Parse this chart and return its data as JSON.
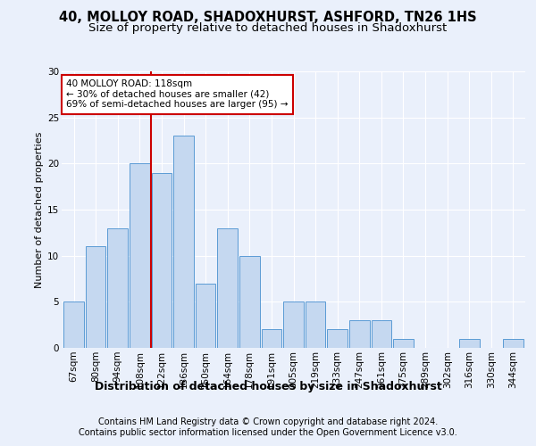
{
  "title1": "40, MOLLOY ROAD, SHADOXHURST, ASHFORD, TN26 1HS",
  "title2": "Size of property relative to detached houses in Shadoxhurst",
  "xlabel": "Distribution of detached houses by size in Shadoxhurst",
  "ylabel": "Number of detached properties",
  "footer1": "Contains HM Land Registry data © Crown copyright and database right 2024.",
  "footer2": "Contains public sector information licensed under the Open Government Licence v3.0.",
  "categories": [
    "67sqm",
    "80sqm",
    "94sqm",
    "108sqm",
    "122sqm",
    "136sqm",
    "150sqm",
    "164sqm",
    "178sqm",
    "191sqm",
    "205sqm",
    "219sqm",
    "233sqm",
    "247sqm",
    "261sqm",
    "275sqm",
    "289sqm",
    "302sqm",
    "316sqm",
    "330sqm",
    "344sqm"
  ],
  "values": [
    5,
    11,
    13,
    20,
    19,
    23,
    7,
    13,
    10,
    2,
    5,
    5,
    2,
    3,
    3,
    1,
    0,
    0,
    1,
    0,
    1
  ],
  "bar_color": "#c5d8f0",
  "bar_edge_color": "#5b9bd5",
  "vline_color": "#cc0000",
  "annotation_text": "40 MOLLOY ROAD: 118sqm\n← 30% of detached houses are smaller (42)\n69% of semi-detached houses are larger (95) →",
  "annotation_box_color": "#ffffff",
  "annotation_box_edge": "#cc0000",
  "bg_color": "#eaf0fb",
  "plot_bg_color": "#eaf0fb",
  "ylim": [
    0,
    30
  ],
  "yticks": [
    0,
    5,
    10,
    15,
    20,
    25,
    30
  ],
  "grid_color": "#ffffff",
  "title1_fontsize": 10.5,
  "title2_fontsize": 9.5,
  "xlabel_fontsize": 9,
  "ylabel_fontsize": 8,
  "tick_fontsize": 7.5,
  "footer_fontsize": 7,
  "ann_fontsize": 7.5
}
